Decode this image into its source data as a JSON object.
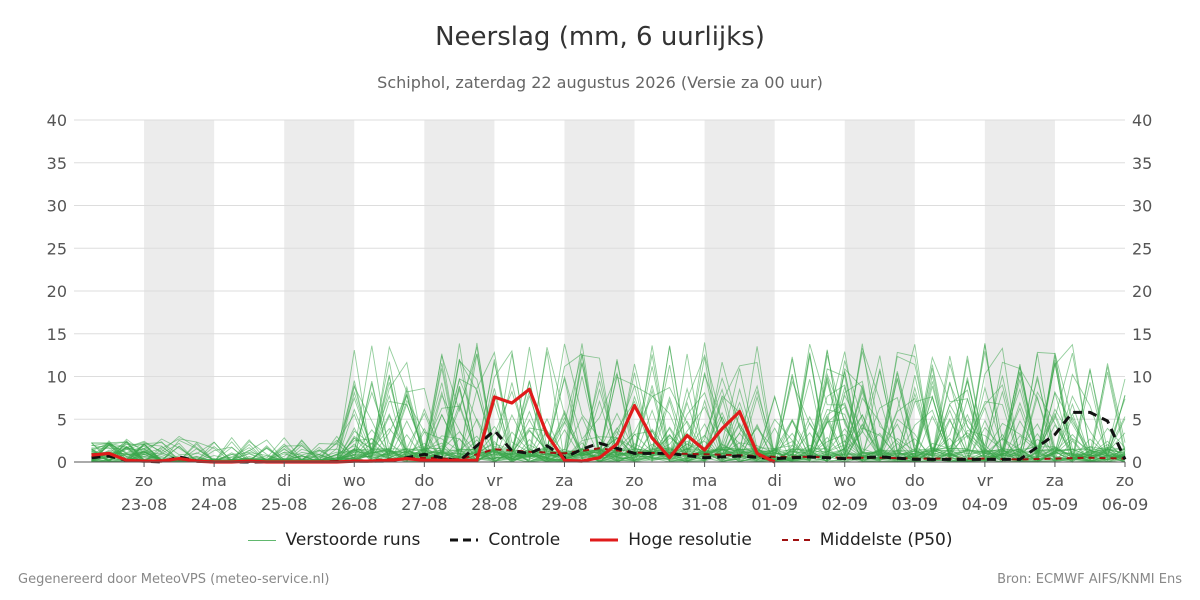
{
  "chart_data": {
    "type": "line",
    "title": "Neerslag (mm, 6 uurlijks)",
    "subtitle": "Schiphol, zaterdag 22 augustus 2026 (Versie za 00 uur)",
    "ylim": [
      0,
      40
    ],
    "yticks": [
      0,
      5,
      10,
      15,
      20,
      25,
      30,
      35,
      40
    ],
    "grid": true,
    "legend_position": "bottom",
    "x_start": "2026-08-22",
    "x_end": "2026-09-06",
    "days": [
      {
        "day": "zo",
        "date": "23-08",
        "shaded": true
      },
      {
        "day": "ma",
        "date": "24-08",
        "shaded": false
      },
      {
        "day": "di",
        "date": "25-08",
        "shaded": true
      },
      {
        "day": "wo",
        "date": "26-08",
        "shaded": false
      },
      {
        "day": "do",
        "date": "27-08",
        "shaded": true
      },
      {
        "day": "vr",
        "date": "28-08",
        "shaded": false
      },
      {
        "day": "za",
        "date": "29-08",
        "shaded": true
      },
      {
        "day": "zo",
        "date": "30-08",
        "shaded": false
      },
      {
        "day": "ma",
        "date": "31-08",
        "shaded": true
      },
      {
        "day": "di",
        "date": "01-09",
        "shaded": false
      },
      {
        "day": "wo",
        "date": "02-09",
        "shaded": true
      },
      {
        "day": "do",
        "date": "03-09",
        "shaded": false
      },
      {
        "day": "vr",
        "date": "04-09",
        "shaded": true
      },
      {
        "day": "za",
        "date": "05-09",
        "shaded": false
      },
      {
        "day": "zo",
        "date": "06-09",
        "shaded": false
      }
    ],
    "colors": {
      "members": "#3aa64a",
      "control": "#111111",
      "hres": "#e01b1b",
      "median": "#a01010",
      "shade": "#ececec",
      "grid": "#dddddd",
      "axis": "#555555"
    },
    "legend": {
      "members": "Verstoorde runs",
      "control": "Controle",
      "hres": "Hoge resolutie",
      "median": "Middelste (P50)"
    },
    "series": [
      {
        "key": "hres",
        "name": "Hoge resolutie",
        "x": [
          "2026-08-22 06:00",
          "2026-08-22 12:00",
          "2026-08-22 18:00",
          "2026-08-23 00:00",
          "2026-08-23 06:00",
          "2026-08-23 12:00",
          "2026-08-23 18:00",
          "2026-08-24 00:00",
          "2026-08-24 06:00",
          "2026-08-24 12:00",
          "2026-08-24 18:00",
          "2026-08-25 00:00",
          "2026-08-25 06:00",
          "2026-08-25 12:00",
          "2026-08-25 18:00",
          "2026-08-26 00:00",
          "2026-08-26 06:00",
          "2026-08-26 12:00",
          "2026-08-26 18:00",
          "2026-08-27 00:00",
          "2026-08-27 06:00",
          "2026-08-27 12:00",
          "2026-08-27 18:00",
          "2026-08-28 00:00",
          "2026-08-28 06:00",
          "2026-08-28 12:00",
          "2026-08-28 18:00",
          "2026-08-29 00:00",
          "2026-08-29 06:00",
          "2026-08-29 12:00",
          "2026-08-29 18:00",
          "2026-08-30 00:00",
          "2026-08-30 06:00",
          "2026-08-30 12:00",
          "2026-08-30 18:00",
          "2026-08-31 00:00",
          "2026-08-31 06:00",
          "2026-08-31 12:00",
          "2026-08-31 18:00",
          "2026-09-01 00:00"
        ],
        "values": [
          0.8,
          1.0,
          0.2,
          0.1,
          0.1,
          0.4,
          0.1,
          0.0,
          0.0,
          0.1,
          0.0,
          0.0,
          0.0,
          0.0,
          0.0,
          0.1,
          0.1,
          0.2,
          0.4,
          0.2,
          0.2,
          0.2,
          0.2,
          7.6,
          6.9,
          8.5,
          3.2,
          0.2,
          0.1,
          0.5,
          2.1,
          6.6,
          2.8,
          0.5,
          3.1,
          1.4,
          3.9,
          5.9,
          1.0,
          0.0
        ]
      },
      {
        "key": "control",
        "name": "Controle",
        "x": [
          "2026-08-22 06:00",
          "2026-08-22 12:00",
          "2026-08-22 18:00",
          "2026-08-23 00:00",
          "2026-08-23 06:00",
          "2026-08-23 12:00",
          "2026-08-23 18:00",
          "2026-08-24 00:00",
          "2026-08-24 12:00",
          "2026-08-25 00:00",
          "2026-08-25 12:00",
          "2026-08-26 00:00",
          "2026-08-26 12:00",
          "2026-08-27 00:00",
          "2026-08-27 12:00",
          "2026-08-28 00:00",
          "2026-08-28 06:00",
          "2026-08-28 12:00",
          "2026-08-28 18:00",
          "2026-08-29 00:00",
          "2026-08-29 06:00",
          "2026-08-29 12:00",
          "2026-08-30 00:00",
          "2026-08-30 12:00",
          "2026-08-31 00:00",
          "2026-08-31 12:00",
          "2026-09-01 00:00",
          "2026-09-01 12:00",
          "2026-09-02 00:00",
          "2026-09-02 12:00",
          "2026-09-03 00:00",
          "2026-09-03 12:00",
          "2026-09-04 00:00",
          "2026-09-04 12:00",
          "2026-09-05 00:00",
          "2026-09-05 06:00",
          "2026-09-05 12:00",
          "2026-09-05 18:00",
          "2026-09-06 00:00"
        ],
        "values": [
          0.5,
          0.7,
          0.2,
          0.1,
          0.0,
          0.6,
          0.1,
          0.0,
          0.0,
          0.0,
          0.0,
          0.1,
          0.1,
          0.9,
          0.1,
          3.7,
          1.3,
          1.0,
          1.9,
          0.5,
          1.5,
          2.2,
          1.0,
          1.0,
          0.5,
          0.7,
          0.4,
          0.6,
          0.4,
          0.6,
          0.3,
          0.3,
          0.3,
          0.3,
          3.2,
          5.8,
          5.8,
          4.8,
          0.3
        ]
      },
      {
        "key": "median",
        "name": "Middelste (P50)",
        "x": [
          "2026-08-22 06:00",
          "2026-08-22 12:00",
          "2026-08-22 18:00",
          "2026-08-23 00:00",
          "2026-08-23 12:00",
          "2026-08-24 00:00",
          "2026-08-24 12:00",
          "2026-08-25 00:00",
          "2026-08-25 12:00",
          "2026-08-26 00:00",
          "2026-08-26 12:00",
          "2026-08-27 00:00",
          "2026-08-27 12:00",
          "2026-08-28 00:00",
          "2026-08-28 12:00",
          "2026-08-29 00:00",
          "2026-08-29 12:00",
          "2026-08-30 00:00",
          "2026-08-30 12:00",
          "2026-08-31 00:00",
          "2026-08-31 12:00",
          "2026-09-01 00:00",
          "2026-09-01 12:00",
          "2026-09-02 00:00",
          "2026-09-02 12:00",
          "2026-09-03 00:00",
          "2026-09-03 12:00",
          "2026-09-04 00:00",
          "2026-09-04 12:00",
          "2026-09-05 00:00",
          "2026-09-05 12:00",
          "2026-09-06 00:00"
        ],
        "values": [
          0.9,
          1.0,
          0.2,
          0.1,
          0.3,
          0.0,
          0.0,
          0.0,
          0.0,
          0.1,
          0.3,
          0.5,
          0.3,
          1.5,
          1.2,
          1.0,
          1.6,
          1.1,
          1.0,
          0.9,
          0.8,
          0.6,
          0.6,
          0.5,
          0.5,
          0.4,
          0.4,
          0.4,
          0.3,
          0.4,
          0.5,
          0.4
        ]
      }
    ]
  },
  "footer": {
    "left": "Gegenereerd door MeteoVPS (meteo-service.nl)",
    "right": "Bron: ECMWF AIFS/KNMI Ens"
  }
}
